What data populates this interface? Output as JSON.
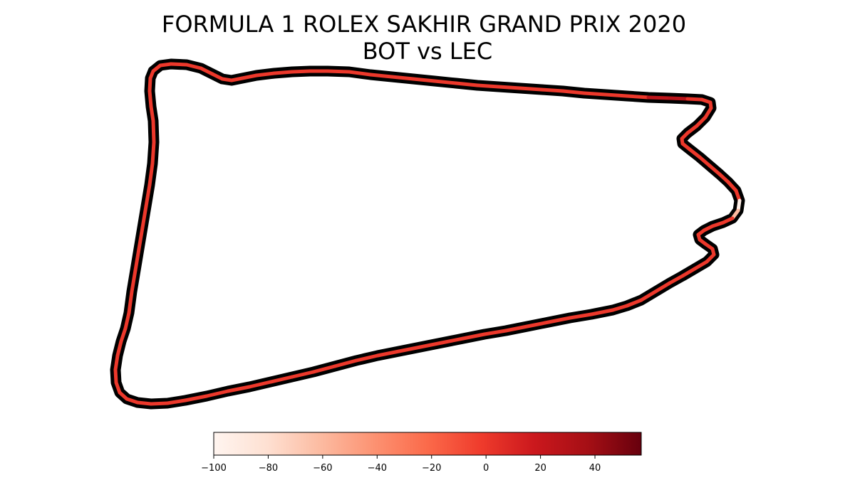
{
  "chart_data": {
    "type": "line",
    "title": "FORMULA 1 ROLEX SAKHIR GRAND PRIX 2020",
    "subtitle": "BOT vs LEC",
    "colorbar": {
      "min": -100,
      "max": 57,
      "ticks": [
        -100,
        -80,
        -60,
        -40,
        -20,
        0,
        20,
        40
      ],
      "tick_labels": [
        "−100",
        "−80",
        "−60",
        "−40",
        "−20",
        "0",
        "20",
        "40"
      ],
      "colormap": "Reds"
    },
    "track": {
      "outline_color": "#000000",
      "base_value": 0,
      "x": [
        215,
        225,
        240,
        262,
        282,
        298,
        312,
        325,
        340,
        360,
        385,
        410,
        435,
        460,
        490,
        520,
        550,
        580,
        610,
        640,
        670,
        700,
        730,
        760,
        790,
        820,
        850,
        880,
        910,
        940,
        965,
        985,
        997,
        998,
        990,
        978,
        965,
        957,
        958,
        968,
        982,
        996,
        1010,
        1022,
        1033,
        1038,
        1036,
        1028,
        1015,
        1000,
        988,
        980,
        982,
        990,
        1000,
        1002,
        992,
        975,
        958,
        940,
        920,
        900,
        880,
        860,
        830,
        800,
        770,
        740,
        710,
        680,
        650,
        620,
        590,
        560,
        530,
        500,
        470,
        440,
        410,
        380,
        350,
        320,
        290,
        260,
        235,
        212,
        193,
        178,
        168,
        163,
        162,
        165,
        170,
        176,
        181,
        185,
        190,
        195,
        200,
        205,
        210,
        214,
        216,
        215,
        212,
        210,
        211,
        215
      ],
      "y": [
        100,
        92,
        90,
        91,
        96,
        104,
        111,
        113,
        110,
        106,
        103,
        101,
        100,
        100,
        101,
        105,
        108,
        111,
        114,
        117,
        120,
        122,
        124,
        126,
        128,
        131,
        133,
        135,
        137,
        138,
        139,
        140,
        144,
        152,
        165,
        177,
        187,
        195,
        202,
        210,
        221,
        233,
        245,
        256,
        268,
        282,
        296,
        307,
        313,
        318,
        324,
        330,
        337,
        343,
        350,
        358,
        368,
        378,
        388,
        398,
        410,
        422,
        430,
        436,
        442,
        447,
        453,
        459,
        465,
        470,
        476,
        482,
        488,
        494,
        500,
        507,
        515,
        523,
        530,
        537,
        544,
        550,
        557,
        563,
        567,
        568,
        566,
        561,
        552,
        538,
        520,
        500,
        480,
        462,
        440,
        410,
        380,
        350,
        320,
        290,
        260,
        230,
        200,
        170,
        150,
        128,
        110,
        100
      ],
      "segment_values": [
        0,
        0,
        0,
        0,
        0,
        0,
        0,
        0,
        0,
        0,
        0,
        0,
        0,
        0,
        0,
        0,
        0,
        0,
        0,
        0,
        0,
        0,
        0,
        0,
        0,
        0,
        0,
        0,
        25,
        28,
        3,
        0,
        0,
        0,
        0,
        0,
        0,
        0,
        0,
        0,
        0,
        0,
        0,
        0,
        0,
        -95,
        -60,
        0,
        0,
        0,
        0,
        0,
        0,
        0,
        0,
        0,
        0,
        0,
        0,
        0,
        0,
        0,
        0,
        0,
        0,
        0,
        0,
        0,
        0,
        0,
        0,
        0,
        0,
        0,
        0,
        0,
        0,
        0,
        0,
        0,
        0,
        0,
        0,
        0,
        0,
        0,
        0,
        0,
        0,
        0,
        0,
        0,
        0,
        0,
        0,
        0,
        0,
        0,
        0,
        0,
        0,
        0,
        0,
        0,
        0,
        0,
        0,
        0
      ]
    }
  }
}
